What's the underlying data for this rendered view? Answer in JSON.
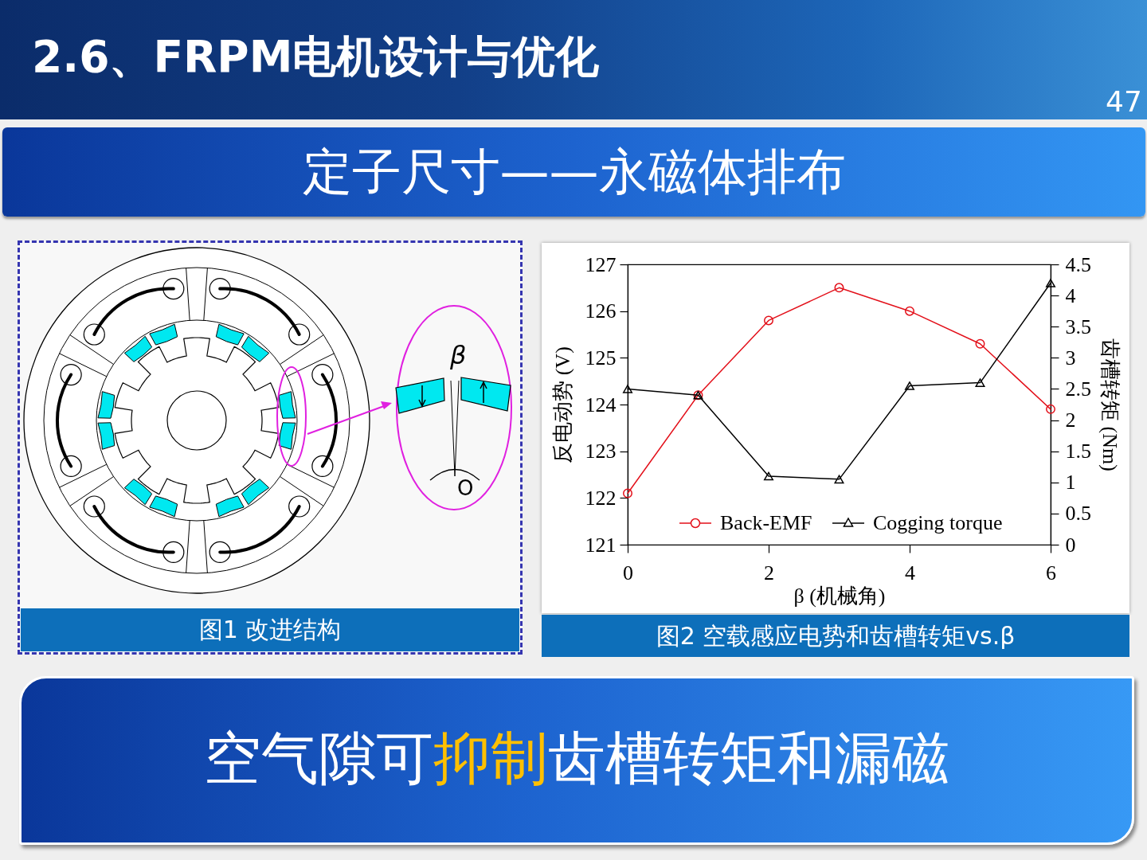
{
  "chart_data": {
    "type": "line",
    "title": "2.6、FRPM电机设计与优化",
    "subtitle": "定子尺寸——永磁体排布",
    "xlabel": "β (机械角)",
    "ylabel": "反电动势 (V)",
    "y2label": "齿槽转矩 (Nm)",
    "x": [
      0,
      1,
      2,
      3,
      4,
      5,
      6
    ],
    "series": [
      {
        "name": "Back-EMF",
        "color": "#e3101a",
        "marker": "circle",
        "values": [
          122.1,
          124.2,
          125.8,
          126.5,
          126.0,
          125.3,
          123.9
        ]
      },
      {
        "name": "Cogging torque",
        "color": "#000000",
        "marker": "triangle",
        "axis": "y2",
        "values": [
          2.5,
          2.4,
          1.1,
          1.05,
          2.55,
          2.6,
          4.2
        ]
      }
    ],
    "xlim": [
      0,
      6
    ],
    "xticks": [
      0,
      2,
      4,
      6
    ],
    "ylim": [
      121,
      127
    ],
    "yticks": [
      121,
      122,
      123,
      124,
      125,
      126,
      127
    ],
    "y2lim": [
      0,
      4.5
    ],
    "y2ticks": [
      0,
      0.5,
      1,
      1.5,
      2,
      2.5,
      3,
      3.5,
      4,
      4.5
    ],
    "legend": "bottom",
    "annotations": [
      "47",
      "图1 改进结构",
      "β",
      "O",
      "图2 空载感应电势和齿槽转矩vs.β",
      "空气隙可",
      "抑制",
      "齿槽转矩和漏磁"
    ]
  }
}
